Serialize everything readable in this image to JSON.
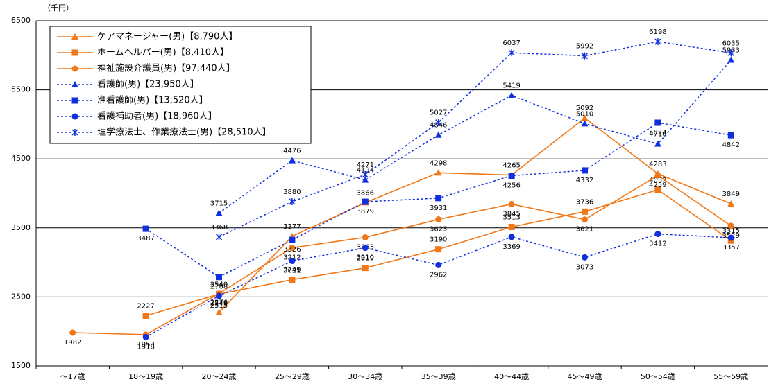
{
  "chart_data": {
    "type": "line",
    "y_label": "（千円）",
    "categories": [
      "～17歳",
      "18～19歳",
      "20～24歳",
      "25～29歳",
      "30～34歳",
      "35～39歳",
      "40～44歳",
      "45～49歳",
      "50～54歳",
      "55～59歳"
    ],
    "ylim": [
      1500,
      6500
    ],
    "yticks": [
      1500,
      2500,
      3500,
      4500,
      5500,
      6500
    ],
    "grid": true,
    "legend": "upper left",
    "series": [
      {
        "name": "ケアマネージャー(男)【8,790人】",
        "color": "#f07818",
        "marker": "triangle",
        "dash": "solid",
        "values": [
          null,
          null,
          2276,
          3377,
          3866,
          4298,
          4265,
          5092,
          4283,
          3849
        ]
      },
      {
        "name": "ホームヘルパー(男)【8,410人】",
        "color": "#f07818",
        "marker": "square",
        "dash": "solid",
        "values": [
          null,
          2227,
          2540,
          2749,
          2919,
          3190,
          3513,
          3736,
          4052,
          3315
        ]
      },
      {
        "name": "福祉施設介護員(男)【97,440人】",
        "color": "#f07818",
        "marker": "circle",
        "dash": "solid",
        "values": [
          1982,
          1953,
          2548,
          3212,
          3363,
          3623,
          3845,
          3621,
          4259,
          3529
        ]
      },
      {
        "name": "看護師(男)【23,950人】",
        "color": "#1030e0",
        "marker": "triangle",
        "dash": "dotted",
        "values": [
          null,
          null,
          3715,
          4476,
          4194,
          4846,
          5419,
          5010,
          4716,
          5933
        ]
      },
      {
        "name": "准看護師(男)【13,520人】",
        "color": "#1030e0",
        "marker": "square",
        "dash": "dotted",
        "values": [
          null,
          3487,
          2788,
          3326,
          3879,
          3931,
          4256,
          4332,
          5024,
          4842
        ]
      },
      {
        "name": "看護補助者(男)【18,960人】",
        "color": "#1030e0",
        "marker": "circle",
        "dash": "dotted",
        "values": [
          null,
          1918,
          2515,
          3021,
          3210,
          2962,
          3369,
          3073,
          3412,
          3357
        ]
      },
      {
        "name": "理学療法士、作業療法士(男)【28,510人】",
        "color": "#1030e0",
        "marker": "star",
        "dash": "dotted",
        "values": [
          null,
          null,
          3368,
          3880,
          4271,
          5027,
          6037,
          5992,
          6198,
          6035
        ]
      }
    ]
  }
}
